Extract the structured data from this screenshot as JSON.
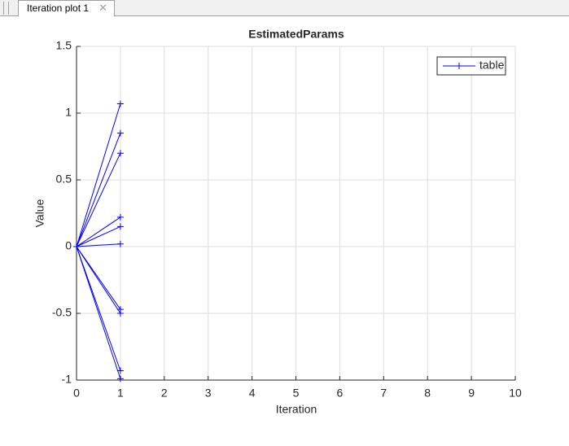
{
  "tab_label": "Iteration plot 1",
  "chart_data": {
    "type": "line",
    "title": "EstimatedParams",
    "x_label": "Iteration",
    "y_label": "Value",
    "x": [
      0,
      1
    ],
    "series": [
      {
        "name": "table",
        "color": "#0000ff",
        "values": [
          0,
          1.07
        ]
      },
      {
        "color": "#0000ff",
        "values": [
          0,
          0.85
        ]
      },
      {
        "color": "#0000ff",
        "values": [
          0,
          0.7
        ]
      },
      {
        "color": "#0000ff",
        "values": [
          0,
          0.22
        ]
      },
      {
        "color": "#0000ff",
        "values": [
          0,
          0.15
        ]
      },
      {
        "color": "#0000ff",
        "values": [
          0,
          0.02
        ]
      },
      {
        "color": "#0000ff",
        "values": [
          0,
          -0.47
        ]
      },
      {
        "color": "#0000ff",
        "values": [
          0,
          -0.5
        ]
      },
      {
        "color": "#0000ff",
        "values": [
          0,
          -0.93
        ]
      },
      {
        "color": "#0000ff",
        "values": [
          0,
          -0.99
        ]
      }
    ],
    "xlim": [
      0,
      10
    ],
    "xticks": [
      0,
      1,
      2,
      3,
      4,
      5,
      6,
      7,
      8,
      9,
      10
    ],
    "ylim": [
      -1,
      1.5
    ],
    "yticks": [
      -1,
      -0.5,
      0,
      0.5,
      1,
      1.5
    ],
    "grid": true,
    "legend": "northeast",
    "marker": "+"
  }
}
